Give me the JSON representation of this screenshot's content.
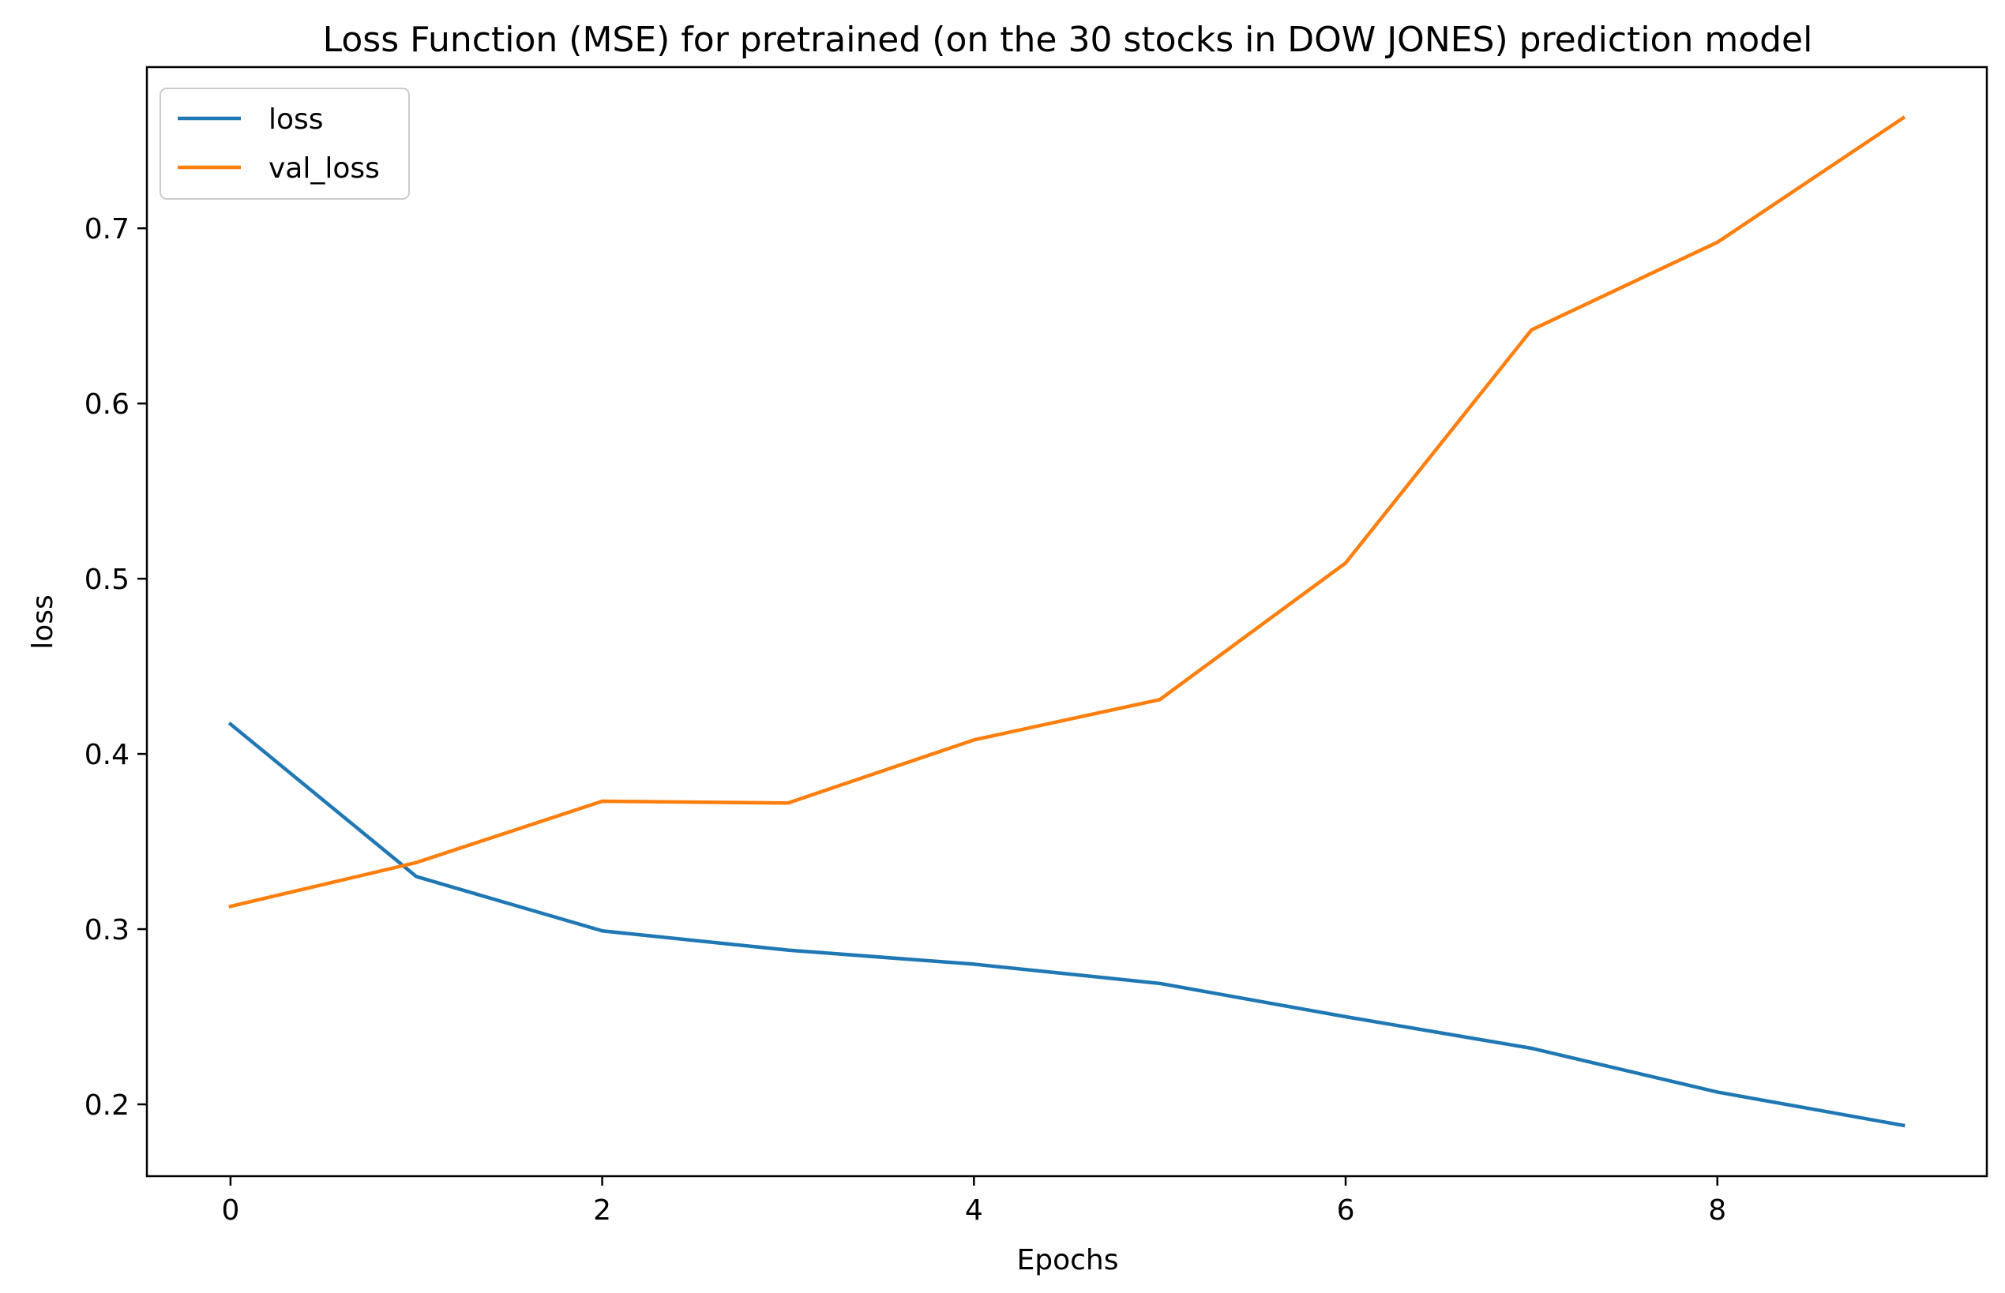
{
  "chart_data": {
    "type": "line",
    "title": "Loss Function (MSE) for pretrained (on the 30 stocks in DOW JONES) prediction model",
    "xlabel": "Epochs",
    "ylabel": "loss",
    "x": [
      0,
      1,
      2,
      3,
      4,
      5,
      6,
      7,
      8,
      9
    ],
    "series": [
      {
        "name": "loss",
        "color": "#1f77b4",
        "values": [
          0.417,
          0.33,
          0.299,
          0.288,
          0.28,
          0.269,
          0.25,
          0.232,
          0.207,
          0.188
        ]
      },
      {
        "name": "val_loss",
        "color": "#ff7f0e",
        "values": [
          0.313,
          0.338,
          0.373,
          0.372,
          0.408,
          0.431,
          0.509,
          0.642,
          0.692,
          0.763
        ]
      }
    ],
    "xlim": [
      -0.45,
      9.45
    ],
    "ylim": [
      0.159,
      0.792
    ],
    "xticks": [
      0,
      2,
      4,
      6,
      8
    ],
    "xtick_labels": [
      "0",
      "2",
      "4",
      "6",
      "8"
    ],
    "yticks": [
      0.2,
      0.3,
      0.4,
      0.5,
      0.6,
      0.7
    ],
    "ytick_labels": [
      "0.2",
      "0.3",
      "0.4",
      "0.5",
      "0.6",
      "0.7"
    ],
    "grid": false,
    "legend": "upper left"
  }
}
